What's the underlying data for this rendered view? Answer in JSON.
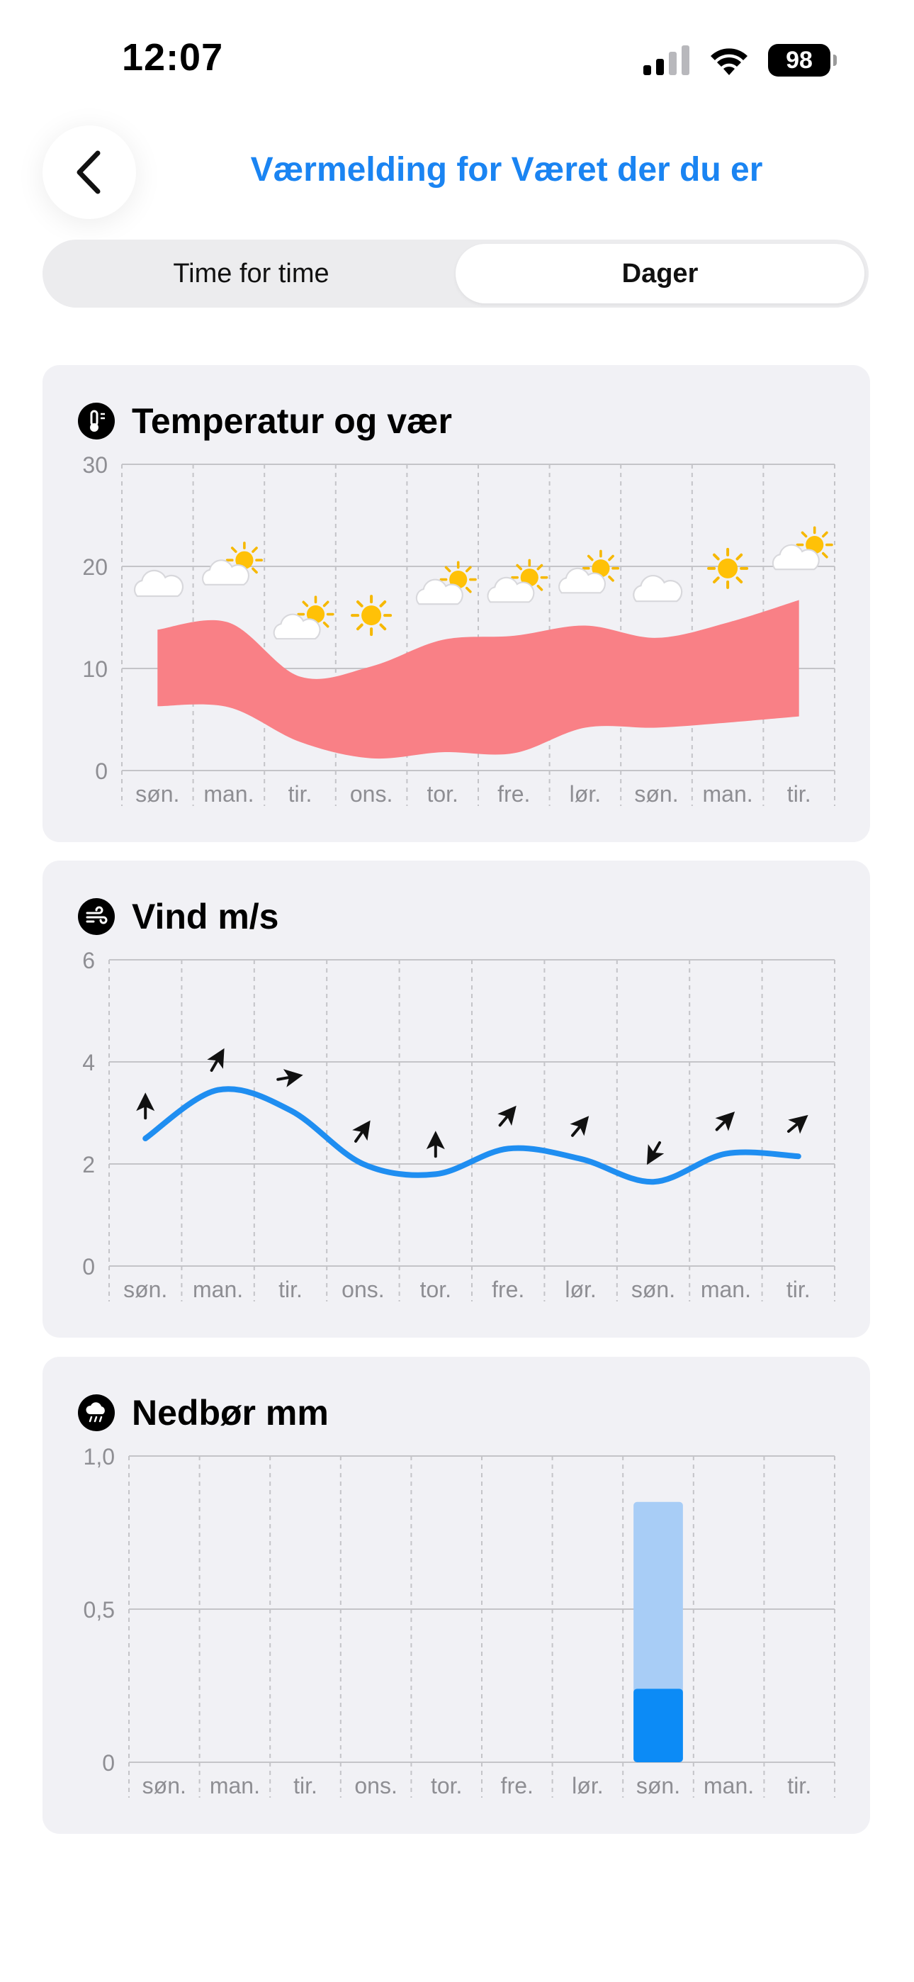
{
  "status_bar": {
    "time": "12:07",
    "battery": "98"
  },
  "header": {
    "title": "Værmelding for Været der du er"
  },
  "tabs": [
    {
      "label": "Time for time",
      "active": false
    },
    {
      "label": "Dager",
      "active": true
    }
  ],
  "days": [
    "søn.",
    "man.",
    "tir.",
    "ons.",
    "tor.",
    "fre.",
    "lør.",
    "søn.",
    "man.",
    "tir."
  ],
  "colors": {
    "accent": "#1a84f2",
    "temp_band": "#f98086",
    "wind_line": "#1f8ef1",
    "precip_light": "#a8cdf6",
    "precip_dark": "#0c8bf6"
  },
  "temperature": {
    "title": "Temperatur og vær",
    "icon": "thermometer-icon",
    "chart_data": {
      "type": "area",
      "categories": [
        "søn.",
        "man.",
        "tir.",
        "ons.",
        "tor.",
        "fre.",
        "lør.",
        "søn.",
        "man.",
        "tir."
      ],
      "series": [
        {
          "values_max": [
            13.8,
            14.5,
            9.2,
            10.2,
            12.8,
            13.2,
            14.2,
            13.0,
            14.5,
            16.7
          ]
        },
        {
          "values_min": [
            6.3,
            6.2,
            2.8,
            1.2,
            1.8,
            1.7,
            4.2,
            4.2,
            4.7,
            5.3
          ]
        }
      ],
      "weather": [
        "cloudy",
        "partly-cloudy",
        "partly-cloudy",
        "sunny",
        "partly-cloudy",
        "partly-cloudy",
        "partly-cloudy",
        "cloudy",
        "sunny",
        "partly-cloudy"
      ],
      "weather_level": [
        18.0,
        19.5,
        14.2,
        15.2,
        17.6,
        17.8,
        18.7,
        17.5,
        19.8,
        21.0
      ],
      "ylim": [
        0,
        30
      ],
      "yticks": [
        "0",
        "10",
        "20",
        "30"
      ]
    }
  },
  "wind": {
    "title": "Vind m/s",
    "icon": "wind-icon",
    "chart_data": {
      "type": "line",
      "categories": [
        "søn.",
        "man.",
        "tir.",
        "ons.",
        "tor.",
        "fre.",
        "lør.",
        "søn.",
        "man.",
        "tir."
      ],
      "values": [
        2.5,
        3.45,
        3.05,
        2.0,
        1.8,
        2.3,
        2.1,
        1.65,
        2.2,
        2.15
      ],
      "direction_deg": [
        0,
        30,
        80,
        35,
        0,
        40,
        40,
        210,
        45,
        50
      ],
      "arrow_level": [
        3.15,
        4.05,
        3.7,
        2.65,
        2.4,
        2.95,
        2.75,
        2.2,
        2.85,
        2.8
      ],
      "ylim": [
        0,
        6
      ],
      "yticks": [
        "0",
        "2",
        "4",
        "6"
      ]
    }
  },
  "precipitation": {
    "title": "Nedbør mm",
    "icon": "rain-cloud-icon",
    "chart_data": {
      "type": "bar",
      "categories": [
        "søn.",
        "man.",
        "tir.",
        "ons.",
        "tor.",
        "fre.",
        "lør.",
        "søn.",
        "man.",
        "tir."
      ],
      "series": [
        {
          "values": [
            0,
            0,
            0,
            0,
            0,
            0,
            0,
            0.85,
            0,
            0
          ]
        },
        {
          "values": [
            0,
            0,
            0,
            0,
            0,
            0,
            0,
            0.24,
            0,
            0
          ]
        }
      ],
      "ylim": [
        0,
        1.0
      ],
      "yticks": [
        "0",
        "0,5",
        "1,0"
      ]
    }
  }
}
